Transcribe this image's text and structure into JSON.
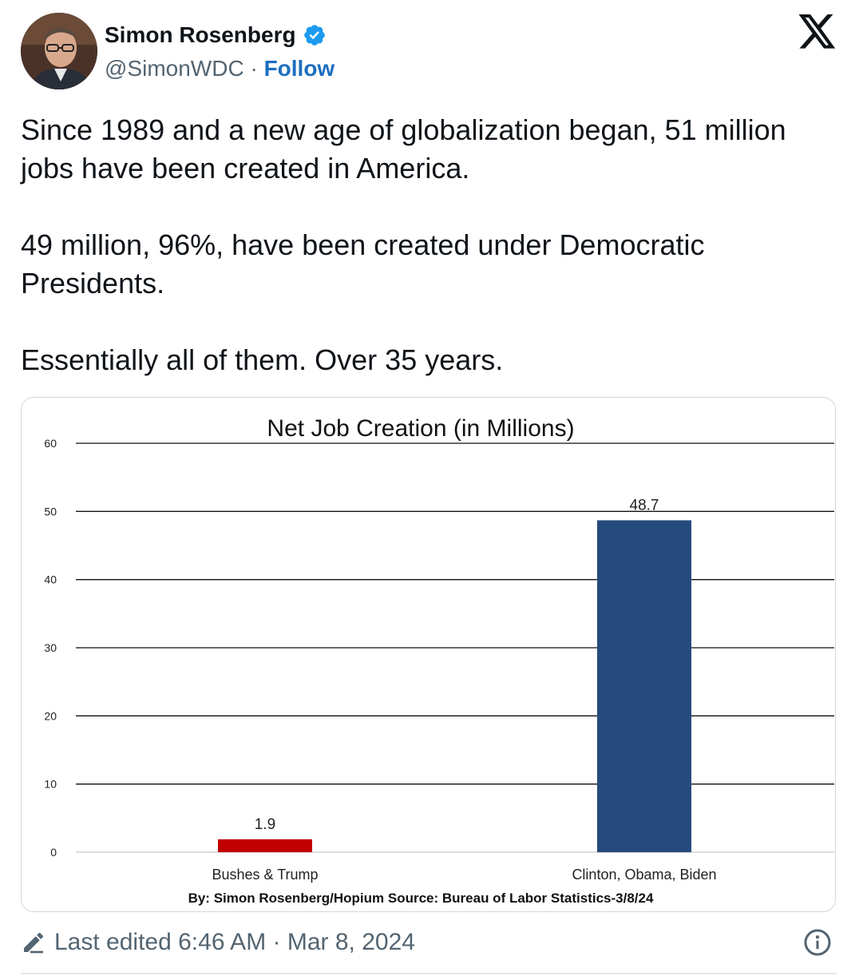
{
  "author": {
    "name": "Simon Rosenberg",
    "handle": "@SimonWDC",
    "separator": "·",
    "follow_label": "Follow"
  },
  "tweet": {
    "paragraphs": [
      "Since 1989 and a new age of globalization began, 51 million jobs have been created in America.",
      "49 million, 96%, have been created under Democratic Presidents.",
      "Essentially all of them.  Over 35 years."
    ]
  },
  "footer": {
    "last_edited": "Last edited 6:46 AM · Mar 8, 2024"
  },
  "icons": {
    "verified": "verified-badge-icon",
    "platform": "x-logo-icon",
    "edit": "pencil-icon",
    "info": "info-icon"
  },
  "colors": {
    "link": "#1d6fbf",
    "verified": "#1d9bf0",
    "republican_bar": "#c00000",
    "democratic_bar": "#254b7d"
  },
  "chart_data": {
    "type": "bar",
    "title": "Net Job Creation (in Millions)",
    "categories": [
      "Bushes & Trump",
      "Clinton, Obama, Biden"
    ],
    "values": [
      1.9,
      48.7
    ],
    "value_labels": [
      "1.9",
      "48.7"
    ],
    "bar_colors": [
      "#c00000",
      "#254b7d"
    ],
    "ylim": [
      0,
      60
    ],
    "yticks": [
      0,
      10,
      20,
      30,
      40,
      50,
      60
    ],
    "grid": true,
    "xlabel": "",
    "ylabel": "",
    "source_note": "By: Simon Rosenberg/Hopium Source: Bureau of Labor Statistics-3/8/24"
  }
}
